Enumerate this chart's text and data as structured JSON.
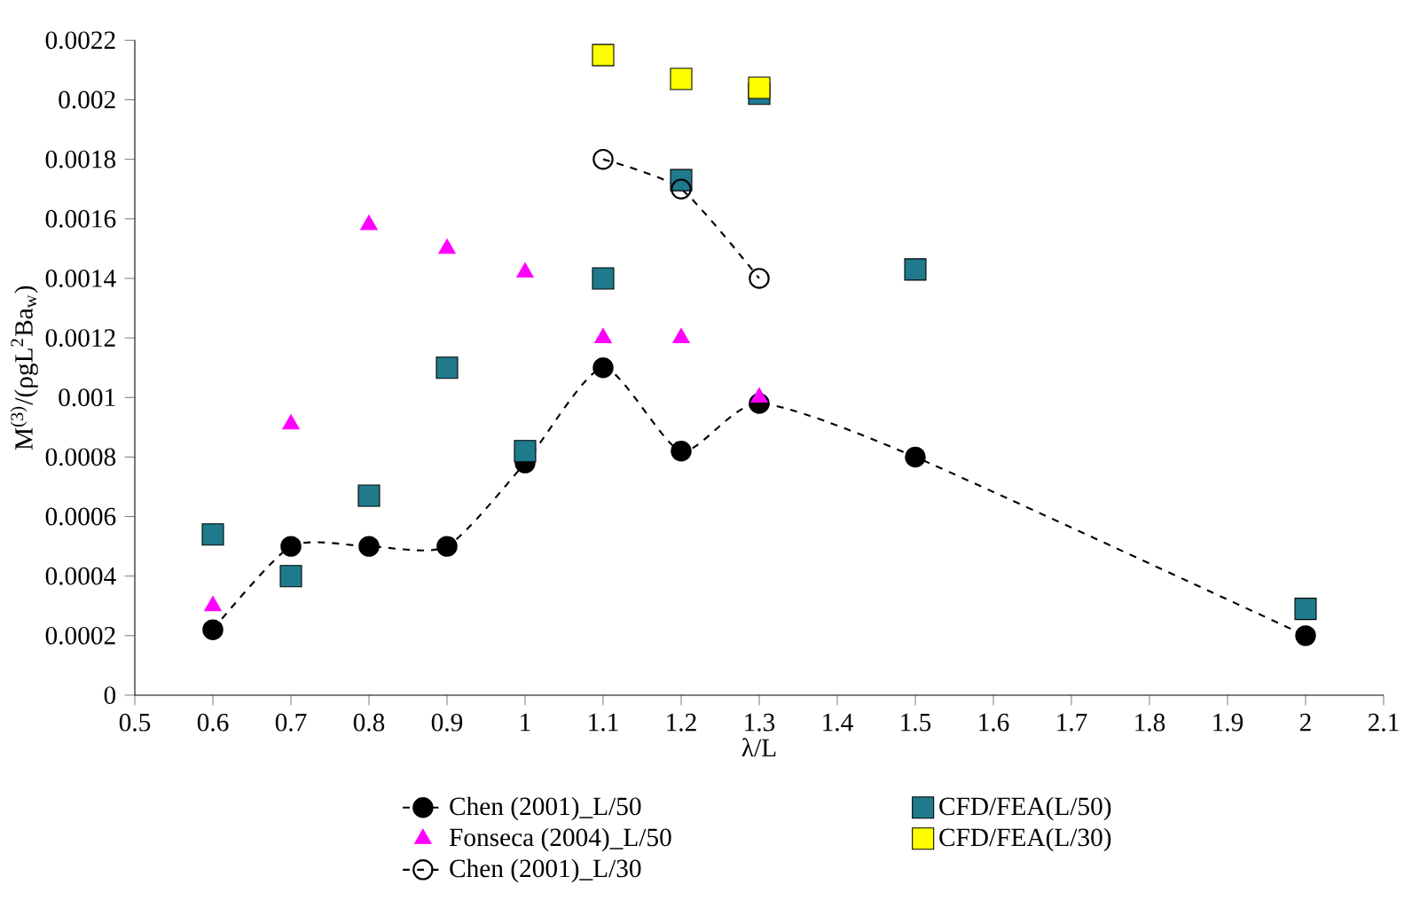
{
  "chart_data": {
    "type": "scatter",
    "xlabel": "λ/L",
    "ylabel": "M$^{(3)}$/(ρgL$^{2}$Ba$_{w}$)",
    "xlim": [
      0.5,
      2.1
    ],
    "xticks": [
      0.5,
      0.6,
      0.7,
      0.8,
      0.9,
      1,
      1.1,
      1.2,
      1.3,
      1.4,
      1.5,
      1.6,
      1.7,
      1.8,
      1.9,
      2,
      2.1
    ],
    "ylim": [
      0,
      0.0022
    ],
    "yticks": [
      0,
      0.0002,
      0.0004,
      0.0006,
      0.0008,
      0.001,
      0.0012,
      0.0014,
      0.0016,
      0.0018,
      0.002,
      0.0022
    ],
    "legend": "bottom",
    "grid": false,
    "series": [
      {
        "name": "Chen (2001)_L/50",
        "type": "line",
        "line_style": "dashed",
        "marker": "circle",
        "color": "#000000",
        "x": [
          0.6,
          0.7,
          0.8,
          0.9,
          1.0,
          1.1,
          1.2,
          1.3,
          1.5,
          2.0
        ],
        "values": [
          0.00022,
          0.0005,
          0.0005,
          0.0005,
          0.00078,
          0.0011,
          0.00082,
          0.00098,
          0.0008,
          0.0002
        ]
      },
      {
        "name": "CFD/FEA(L/50)",
        "marker": "square",
        "color": "#1f7a8c",
        "x": [
          0.6,
          0.7,
          0.8,
          0.9,
          1.0,
          1.1,
          1.2,
          1.3,
          1.5,
          2.0
        ],
        "values": [
          0.00054,
          0.0004,
          0.00067,
          0.0011,
          0.00082,
          0.0014,
          0.00173,
          0.00202,
          0.00143,
          0.00029
        ]
      },
      {
        "name": "Fonseca (2004)_L/50",
        "marker": "triangle",
        "color": "#ff00ff",
        "x": [
          0.6,
          0.7,
          0.8,
          0.9,
          1.0,
          1.1,
          1.2,
          1.3
        ],
        "values": [
          0.0003,
          0.00091,
          0.00158,
          0.0015,
          0.00142,
          0.0012,
          0.0012,
          0.001
        ]
      },
      {
        "name": "CFD/FEA(L/30)",
        "marker": "square",
        "color": "#ffff00",
        "x": [
          1.1,
          1.2,
          1.3
        ],
        "values": [
          0.00215,
          0.00207,
          0.00204
        ]
      },
      {
        "name": "Chen (2001)_L/30",
        "type": "line",
        "line_style": "dashed",
        "marker": "open circle",
        "color": "#000000",
        "x": [
          1.1,
          1.2,
          1.3
        ],
        "values": [
          0.0018,
          0.0017,
          0.0014
        ]
      }
    ]
  }
}
